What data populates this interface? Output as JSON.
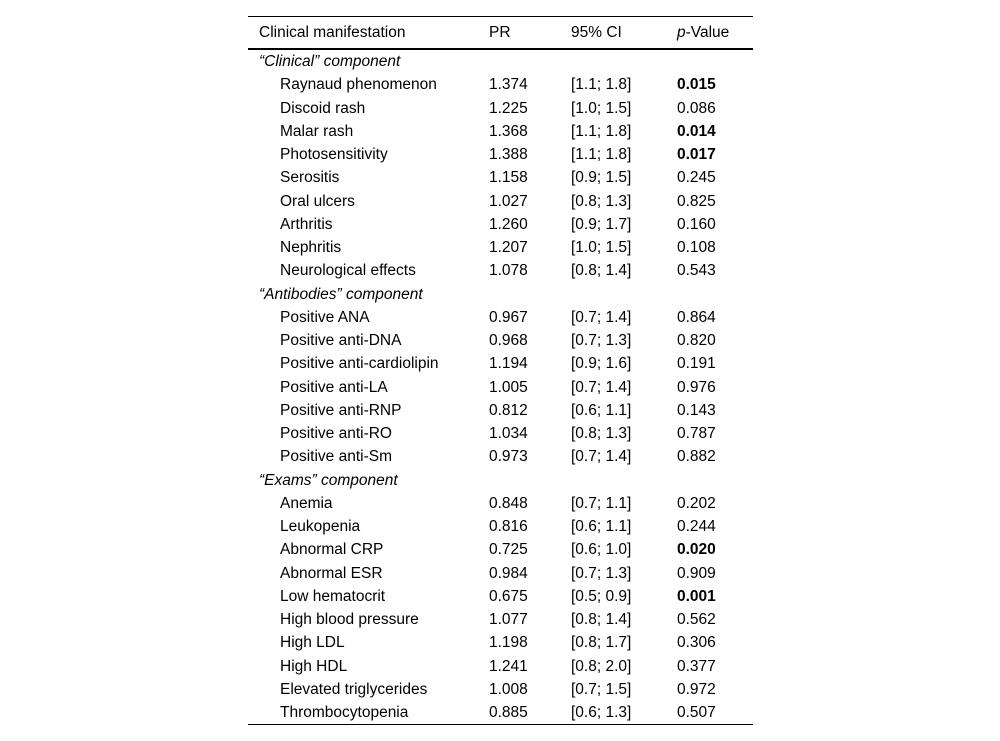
{
  "table": {
    "header": {
      "manifestation": "Clinical manifestation",
      "pr": "PR",
      "ci": "95% CI",
      "p_italic": "p",
      "p_rest": "-Value"
    },
    "sections": [
      {
        "label": "“Clinical” component",
        "rows": [
          {
            "name": "Raynaud phenomenon",
            "pr": "1.374",
            "ci": "[1.1; 1.8]",
            "p": "0.015",
            "significant": true
          },
          {
            "name": "Discoid rash",
            "pr": "1.225",
            "ci": "[1.0; 1.5]",
            "p": "0.086",
            "significant": false
          },
          {
            "name": "Malar rash",
            "pr": "1.368",
            "ci": "[1.1; 1.8]",
            "p": "0.014",
            "significant": true
          },
          {
            "name": "Photosensitivity",
            "pr": "1.388",
            "ci": "[1.1; 1.8]",
            "p": "0.017",
            "significant": true
          },
          {
            "name": "Serositis",
            "pr": "1.158",
            "ci": "[0.9; 1.5]",
            "p": "0.245",
            "significant": false
          },
          {
            "name": "Oral ulcers",
            "pr": "1.027",
            "ci": "[0.8; 1.3]",
            "p": "0.825",
            "significant": false
          },
          {
            "name": "Arthritis",
            "pr": "1.260",
            "ci": "[0.9; 1.7]",
            "p": "0.160",
            "significant": false
          },
          {
            "name": "Nephritis",
            "pr": "1.207",
            "ci": "[1.0; 1.5]",
            "p": "0.108",
            "significant": false
          },
          {
            "name": "Neurological effects",
            "pr": "1.078",
            "ci": "[0.8; 1.4]",
            "p": "0.543",
            "significant": false
          }
        ]
      },
      {
        "label": "“Antibodies” component",
        "rows": [
          {
            "name": "Positive ANA",
            "pr": "0.967",
            "ci": "[0.7; 1.4]",
            "p": "0.864",
            "significant": false
          },
          {
            "name": "Positive anti-DNA",
            "pr": "0.968",
            "ci": "[0.7; 1.3]",
            "p": "0.820",
            "significant": false
          },
          {
            "name": "Positive anti-cardiolipin",
            "pr": "1.194",
            "ci": "[0.9; 1.6]",
            "p": "0.191",
            "significant": false
          },
          {
            "name": "Positive anti-LA",
            "pr": "1.005",
            "ci": "[0.7; 1.4]",
            "p": "0.976",
            "significant": false
          },
          {
            "name": "Positive anti-RNP",
            "pr": "0.812",
            "ci": "[0.6; 1.1]",
            "p": "0.143",
            "significant": false
          },
          {
            "name": "Positive anti-RO",
            "pr": "1.034",
            "ci": "[0.8; 1.3]",
            "p": "0.787",
            "significant": false
          },
          {
            "name": "Positive anti-Sm",
            "pr": "0.973",
            "ci": "[0.7; 1.4]",
            "p": "0.882",
            "significant": false
          }
        ]
      },
      {
        "label": "“Exams” component",
        "rows": [
          {
            "name": "Anemia",
            "pr": "0.848",
            "ci": "[0.7; 1.1]",
            "p": "0.202",
            "significant": false
          },
          {
            "name": "Leukopenia",
            "pr": "0.816",
            "ci": "[0.6; 1.1]",
            "p": "0.244",
            "significant": false
          },
          {
            "name": "Abnormal CRP",
            "pr": "0.725",
            "ci": "[0.6; 1.0]",
            "p": "0.020",
            "significant": true
          },
          {
            "name": "Abnormal ESR",
            "pr": "0.984",
            "ci": "[0.7; 1.3]",
            "p": "0.909",
            "significant": false
          },
          {
            "name": "Low hematocrit",
            "pr": "0.675",
            "ci": "[0.5; 0.9]",
            "p": "0.001",
            "significant": true
          },
          {
            "name": "High blood pressure",
            "pr": "1.077",
            "ci": "[0.8; 1.4]",
            "p": "0.562",
            "significant": false
          },
          {
            "name": "High LDL",
            "pr": "1.198",
            "ci": "[0.8; 1.7]",
            "p": "0.306",
            "significant": false
          },
          {
            "name": "High HDL",
            "pr": "1.241",
            "ci": "[0.8; 2.0]",
            "p": "0.377",
            "significant": false
          },
          {
            "name": "Elevated triglycerides",
            "pr": "1.008",
            "ci": "[0.7; 1.5]",
            "p": "0.972",
            "significant": false
          },
          {
            "name": "Thrombocytopenia",
            "pr": "0.885",
            "ci": "[0.6; 1.3]",
            "p": "0.507",
            "significant": false
          }
        ]
      }
    ]
  }
}
